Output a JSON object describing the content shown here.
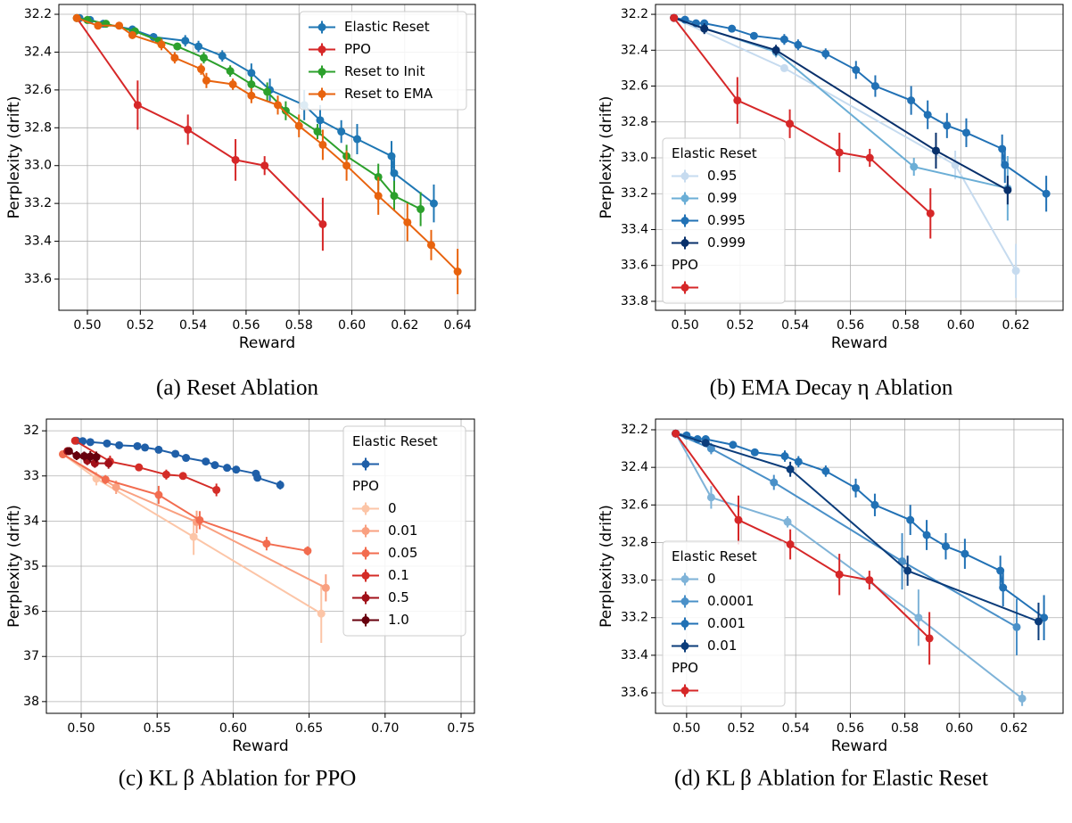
{
  "chart_data": [
    {
      "type": "line",
      "caption": "(a) Reset Ablation",
      "x_label": "Reward",
      "y_label": "Perplexity (drift)",
      "xlim": [
        0.4892,
        0.6467
      ],
      "ylim": [
        32.148,
        33.765
      ],
      "y_inverted": true,
      "grid": true,
      "legend": "upper right",
      "xticks": [
        {
          "value": 0.5,
          "label": "0.50"
        },
        0.52,
        0.54,
        0.56,
        0.58,
        {
          "value": 0.6,
          "label": "0.60"
        },
        0.62,
        0.64
      ],
      "yticks": [
        32.2,
        32.4,
        32.6,
        32.8,
        {
          "value": 33,
          "label": "33.0"
        },
        33.2,
        33.4,
        33.6
      ],
      "series": [
        {
          "name": "Elastic Reset",
          "color": "#1f77b4",
          "x": [
            0.497,
            0.501,
            0.506,
            0.517,
            0.525,
            0.537,
            0.542,
            0.551,
            0.562,
            0.569,
            0.582,
            0.588,
            0.596,
            0.602,
            0.615,
            0.616,
            0.631
          ],
          "values": [
            32.22,
            32.23,
            32.25,
            32.28,
            32.32,
            32.34,
            32.37,
            32.42,
            32.51,
            32.6,
            32.68,
            32.76,
            32.82,
            32.86,
            32.95,
            33.04,
            33.2
          ],
          "errors": [
            0.01,
            0.01,
            0.02,
            0.02,
            0.02,
            0.03,
            0.03,
            0.03,
            0.05,
            0.06,
            0.08,
            0.08,
            0.06,
            0.08,
            0.08,
            0.08,
            0.1
          ]
        },
        {
          "name": "PPO",
          "color": "#d62728",
          "x": [
            0.496,
            0.519,
            0.538,
            0.556,
            0.567,
            0.589
          ],
          "values": [
            32.22,
            32.68,
            32.81,
            32.97,
            33.0,
            33.31
          ],
          "errors": [
            0.01,
            0.13,
            0.08,
            0.11,
            0.05,
            0.14
          ]
        },
        {
          "name": "Reset to Init",
          "color": "#2ca02c",
          "x": [
            0.496,
            0.5,
            0.507,
            0.518,
            0.527,
            0.534,
            0.544,
            0.554,
            0.562,
            0.568,
            0.575,
            0.587,
            0.598,
            0.61,
            0.616,
            0.626
          ],
          "values": [
            32.22,
            32.23,
            32.25,
            32.29,
            32.34,
            32.37,
            32.43,
            32.5,
            32.57,
            32.61,
            32.71,
            32.82,
            32.95,
            33.06,
            33.16,
            33.23
          ],
          "errors": [
            0.01,
            0.01,
            0.01,
            0.02,
            0.02,
            0.02,
            0.03,
            0.03,
            0.04,
            0.05,
            0.05,
            0.04,
            0.06,
            0.07,
            0.08,
            0.09
          ]
        },
        {
          "name": "Reset to EMA",
          "color": "#e8630e",
          "x": [
            0.496,
            0.504,
            0.512,
            0.517,
            0.528,
            0.533,
            0.543,
            0.545,
            0.555,
            0.562,
            0.572,
            0.58,
            0.589,
            0.598,
            0.61,
            0.621,
            0.63,
            0.64
          ],
          "values": [
            32.22,
            32.26,
            32.26,
            32.31,
            32.36,
            32.43,
            32.49,
            32.55,
            32.57,
            32.63,
            32.68,
            32.79,
            32.89,
            33.0,
            33.16,
            33.3,
            33.42,
            33.56
          ],
          "errors": [
            0.01,
            0.02,
            0.01,
            0.02,
            0.03,
            0.03,
            0.03,
            0.04,
            0.03,
            0.04,
            0.05,
            0.06,
            0.08,
            0.08,
            0.1,
            0.1,
            0.08,
            0.12
          ]
        }
      ]
    },
    {
      "type": "line",
      "caption": "(b) EMA Decay η Ablation",
      "x_label": "Reward",
      "y_label": "Perplexity (drift)",
      "xlim": [
        0.4893,
        0.6371
      ],
      "ylim": [
        32.145,
        33.85
      ],
      "y_inverted": true,
      "grid": true,
      "legend": "lower left",
      "xticks": [
        {
          "value": 0.5,
          "label": "0.50"
        },
        0.52,
        0.54,
        0.56,
        0.58,
        {
          "value": 0.6,
          "label": "0.60"
        },
        0.62
      ],
      "yticks": [
        32.2,
        32.4,
        32.6,
        32.8,
        {
          "value": 33,
          "label": "33.0"
        },
        33.2,
        33.4,
        33.6,
        33.8
      ],
      "series": [
        {
          "group": "Elastic Reset",
          "name": "0.95",
          "color": "#c6dbef",
          "x": [
            0.496,
            0.536,
            0.598,
            0.62
          ],
          "values": [
            32.22,
            32.5,
            33.04,
            33.63
          ],
          "errors": [
            0.01,
            0.02,
            0.08,
            0.15
          ]
        },
        {
          "group": "Elastic Reset",
          "name": "0.99",
          "color": "#6baed6",
          "x": [
            0.496,
            0.533,
            0.583,
            0.617
          ],
          "values": [
            32.22,
            32.41,
            33.05,
            33.17
          ],
          "errors": [
            0.01,
            0.03,
            0.05,
            0.18
          ]
        },
        {
          "group": "Elastic Reset",
          "name": "0.995",
          "color": "#2171b5",
          "x": [
            0.496,
            0.5,
            0.504,
            0.507,
            0.517,
            0.525,
            0.536,
            0.541,
            0.551,
            0.562,
            0.569,
            0.582,
            0.588,
            0.595,
            0.602,
            0.615,
            0.616,
            0.631
          ],
          "values": [
            32.22,
            32.23,
            32.25,
            32.25,
            32.28,
            32.32,
            32.34,
            32.37,
            32.42,
            32.51,
            32.6,
            32.68,
            32.76,
            32.82,
            32.86,
            32.95,
            33.04,
            33.2
          ],
          "errors": [
            0.01,
            0.01,
            0.01,
            0.02,
            0.02,
            0.02,
            0.03,
            0.03,
            0.03,
            0.05,
            0.06,
            0.08,
            0.08,
            0.07,
            0.08,
            0.08,
            0.1,
            0.1
          ]
        },
        {
          "group": "Elastic Reset",
          "name": "0.999",
          "color": "#08306b",
          "x": [
            0.496,
            0.507,
            0.533,
            0.591,
            0.617
          ],
          "values": [
            32.22,
            32.28,
            32.4,
            32.96,
            33.18
          ],
          "errors": [
            0.01,
            0.03,
            0.03,
            0.1,
            0.08
          ]
        },
        {
          "group": "PPO",
          "color": "#d62728",
          "x": [
            0.496,
            0.519,
            0.538,
            0.556,
            0.567,
            0.589
          ],
          "values": [
            32.22,
            32.68,
            32.81,
            32.97,
            33.0,
            33.31
          ],
          "errors": [
            0.01,
            0.13,
            0.08,
            0.11,
            0.05,
            0.14
          ]
        }
      ]
    },
    {
      "type": "line",
      "caption": "(c) KL β Ablation for PPO",
      "x_label": "Reward",
      "y_label": "Perplexity (drift)",
      "xlim": [
        0.4771,
        0.7588
      ],
      "ylim": [
        31.74,
        38.26
      ],
      "y_inverted": true,
      "grid": true,
      "legend": "upper right",
      "xticks": [
        {
          "value": 0.5,
          "label": "0.50"
        },
        0.55,
        {
          "value": 0.6,
          "label": "0.60"
        },
        0.65,
        {
          "value": 0.7,
          "label": "0.70"
        },
        0.75
      ],
      "yticks": [
        32,
        33,
        34,
        35,
        36,
        37,
        38
      ],
      "series": [
        {
          "group": "Elastic Reset",
          "color": "#1f5fa8",
          "x": [
            0.497,
            0.501,
            0.506,
            0.517,
            0.525,
            0.537,
            0.542,
            0.551,
            0.562,
            0.569,
            0.582,
            0.588,
            0.596,
            0.602,
            0.615,
            0.616,
            0.631
          ],
          "values": [
            32.22,
            32.23,
            32.25,
            32.28,
            32.32,
            32.34,
            32.37,
            32.42,
            32.51,
            32.6,
            32.68,
            32.76,
            32.82,
            32.86,
            32.95,
            33.04,
            33.2
          ],
          "errors": [
            0.01,
            0.01,
            0.02,
            0.02,
            0.02,
            0.03,
            0.03,
            0.03,
            0.05,
            0.06,
            0.08,
            0.08,
            0.06,
            0.08,
            0.08,
            0.08,
            0.1
          ]
        },
        {
          "group": "PPO",
          "name": "0",
          "color": "#fcc5a7",
          "x": [
            0.488,
            0.51,
            0.574,
            0.658
          ],
          "values": [
            32.52,
            33.06,
            34.35,
            36.05
          ],
          "errors": [
            0.05,
            0.15,
            0.4,
            0.65
          ]
        },
        {
          "group": "PPO",
          "name": "0.01",
          "color": "#f9a080",
          "x": [
            0.488,
            0.523,
            0.576,
            0.661
          ],
          "values": [
            32.52,
            33.25,
            34.02,
            35.48
          ],
          "errors": [
            0.05,
            0.15,
            0.25,
            0.3
          ]
        },
        {
          "group": "PPO",
          "name": "0.05",
          "color": "#f26c4f",
          "x": [
            0.488,
            0.516,
            0.551,
            0.578,
            0.622,
            0.649
          ],
          "values": [
            32.52,
            33.08,
            33.42,
            33.98,
            34.5,
            34.66
          ],
          "errors": [
            0.05,
            0.1,
            0.2,
            0.2,
            0.15,
            0.1
          ]
        },
        {
          "group": "PPO",
          "name": "0.1",
          "color": "#d42c27",
          "x": [
            0.496,
            0.519,
            0.538,
            0.556,
            0.567,
            0.589
          ],
          "values": [
            32.22,
            32.68,
            32.81,
            32.97,
            33.0,
            33.31
          ],
          "errors": [
            0.01,
            0.13,
            0.08,
            0.11,
            0.05,
            0.14
          ]
        },
        {
          "group": "PPO",
          "name": "0.5",
          "color": "#a11019",
          "x": [
            0.491,
            0.504,
            0.509,
            0.518
          ],
          "values": [
            32.45,
            32.66,
            32.72,
            32.72
          ],
          "errors": [
            0.05,
            0.1,
            0.1,
            0.12
          ]
        },
        {
          "group": "PPO",
          "name": "1.0",
          "color": "#67000d",
          "x": [
            0.492,
            0.497,
            0.502,
            0.506,
            0.51
          ],
          "values": [
            32.45,
            32.55,
            32.56,
            32.57,
            32.58
          ],
          "errors": [
            0.05,
            0.1,
            0.1,
            0.12,
            0.12
          ]
        }
      ]
    },
    {
      "type": "line",
      "caption": "(d) KL β Ablation for Elastic Reset",
      "x_label": "Reward",
      "y_label": "Perplexity (drift)",
      "xlim": [
        0.4886,
        0.638
      ],
      "ylim": [
        32.143,
        33.709
      ],
      "y_inverted": true,
      "grid": true,
      "legend": "lower left",
      "xticks": [
        {
          "value": 0.5,
          "label": "0.50"
        },
        0.52,
        0.54,
        0.56,
        0.58,
        {
          "value": 0.6,
          "label": "0.60"
        },
        0.62
      ],
      "yticks": [
        32.2,
        32.4,
        32.6,
        32.8,
        {
          "value": 33,
          "label": "33.0"
        },
        33.2,
        33.4,
        33.6
      ],
      "series": [
        {
          "group": "Elastic Reset",
          "name": "0",
          "color": "#7fb3d8",
          "x": [
            0.496,
            0.509,
            0.537,
            0.585,
            0.623
          ],
          "values": [
            32.22,
            32.56,
            32.69,
            33.2,
            33.63
          ],
          "errors": [
            0.01,
            0.06,
            0.03,
            0.15,
            0.04
          ]
        },
        {
          "group": "Elastic Reset",
          "name": "0.0001",
          "color": "#4a90c8",
          "x": [
            0.496,
            0.509,
            0.532,
            0.579,
            0.621
          ],
          "values": [
            32.22,
            32.3,
            32.48,
            32.9,
            33.25
          ],
          "errors": [
            0.02,
            0.03,
            0.04,
            0.15,
            0.15
          ]
        },
        {
          "group": "Elastic Reset",
          "name": "0.001",
          "color": "#2171b5",
          "x": [
            0.496,
            0.5,
            0.504,
            0.507,
            0.517,
            0.525,
            0.536,
            0.541,
            0.551,
            0.562,
            0.569,
            0.582,
            0.588,
            0.595,
            0.602,
            0.615,
            0.616,
            0.631
          ],
          "values": [
            32.22,
            32.23,
            32.25,
            32.25,
            32.28,
            32.32,
            32.34,
            32.37,
            32.42,
            32.51,
            32.6,
            32.68,
            32.76,
            32.82,
            32.86,
            32.95,
            33.04,
            33.2
          ],
          "errors": [
            0.01,
            0.01,
            0.01,
            0.02,
            0.02,
            0.02,
            0.03,
            0.03,
            0.03,
            0.05,
            0.06,
            0.08,
            0.08,
            0.07,
            0.08,
            0.08,
            0.1,
            0.12
          ]
        },
        {
          "group": "Elastic Reset",
          "name": "0.01",
          "color": "#0b3c7a",
          "x": [
            0.496,
            0.507,
            0.538,
            0.581,
            0.629
          ],
          "values": [
            32.22,
            32.27,
            32.41,
            32.95,
            33.22
          ],
          "errors": [
            0.01,
            0.02,
            0.04,
            0.08,
            0.1
          ]
        },
        {
          "group": "PPO",
          "color": "#d62728",
          "x": [
            0.496,
            0.519,
            0.538,
            0.556,
            0.567,
            0.589
          ],
          "values": [
            32.22,
            32.68,
            32.81,
            32.97,
            33.0,
            33.31
          ],
          "errors": [
            0.01,
            0.13,
            0.08,
            0.11,
            0.05,
            0.14
          ]
        }
      ]
    }
  ]
}
